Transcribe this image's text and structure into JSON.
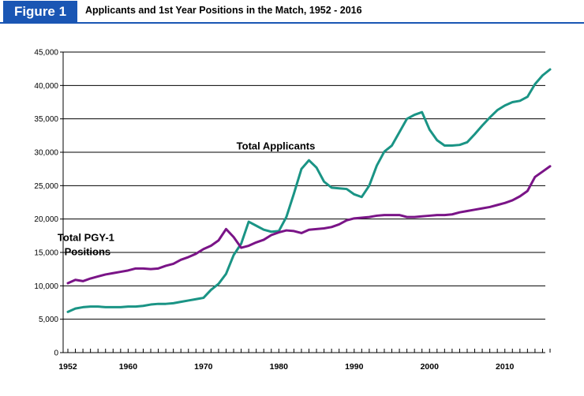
{
  "figure_label": "Figure 1",
  "figure_title": "Applicants and 1st Year Positions in the Match, 1952 - 2016",
  "chart_data": {
    "type": "line",
    "title": "Applicants and 1st Year Positions in the Match, 1952 - 2016",
    "xlabel": "",
    "ylabel": "",
    "xlim": [
      1952,
      2016
    ],
    "ylim": [
      0,
      45000
    ],
    "yticks": [
      0,
      5000,
      10000,
      15000,
      20000,
      25000,
      30000,
      35000,
      40000,
      45000
    ],
    "ytick_labels": [
      "0",
      "5,000",
      "10,000",
      "15,000",
      "20,000",
      "25,000",
      "30,000",
      "35,000",
      "40,000",
      "45,000"
    ],
    "xticks": [
      1952,
      1960,
      1970,
      1980,
      1990,
      2000,
      2010
    ],
    "xtick_labels": [
      "1952",
      "1960",
      "1970",
      "1980",
      "1990",
      "2000",
      "2010"
    ],
    "grid": "horizontal",
    "legend": "none",
    "x": [
      1952,
      1953,
      1954,
      1955,
      1956,
      1957,
      1958,
      1959,
      1960,
      1961,
      1962,
      1963,
      1964,
      1965,
      1966,
      1967,
      1968,
      1969,
      1970,
      1971,
      1972,
      1973,
      1974,
      1975,
      1976,
      1977,
      1978,
      1979,
      1980,
      1981,
      1982,
      1983,
      1984,
      1985,
      1986,
      1987,
      1988,
      1989,
      1990,
      1991,
      1992,
      1993,
      1994,
      1995,
      1996,
      1997,
      1998,
      1999,
      2000,
      2001,
      2002,
      2003,
      2004,
      2005,
      2006,
      2007,
      2008,
      2009,
      2010,
      2011,
      2012,
      2013,
      2014,
      2015,
      2016
    ],
    "series": [
      {
        "name": "Total Applicants",
        "color": "#1a9485",
        "values": [
          6100,
          6600,
          6800,
          6900,
          6900,
          6800,
          6800,
          6800,
          6900,
          6900,
          7000,
          7200,
          7300,
          7300,
          7400,
          7600,
          7800,
          8000,
          8200,
          9400,
          10300,
          11800,
          14600,
          16300,
          19600,
          19000,
          18400,
          18100,
          18200,
          20300,
          23800,
          27500,
          28800,
          27700,
          25600,
          24700,
          24600,
          24500,
          23700,
          23300,
          25000,
          28000,
          30100,
          31000,
          33000,
          35000,
          35600,
          36000,
          33400,
          31800,
          31000,
          31000,
          31100,
          31500,
          32700,
          34000,
          35200,
          36300,
          37000,
          37500,
          37700,
          38300,
          40200,
          41500,
          42400
        ],
        "label_x": 1979.6,
        "label_y": 30400
      },
      {
        "name": "Total PGY-1 Positions",
        "color": "#7a1487",
        "values": [
          10400,
          10900,
          10700,
          11100,
          11400,
          11700,
          11900,
          12100,
          12300,
          12600,
          12600,
          12500,
          12600,
          13000,
          13300,
          13900,
          14300,
          14800,
          15500,
          16000,
          16800,
          18500,
          17300,
          15700,
          16000,
          16500,
          16900,
          17600,
          18000,
          18300,
          18200,
          17900,
          18400,
          18500,
          18600,
          18800,
          19200,
          19800,
          20100,
          20200,
          20300,
          20500,
          20600,
          20600,
          20600,
          20300,
          20300,
          20400,
          20500,
          20600,
          20600,
          20700,
          21000,
          21200,
          21400,
          21600,
          21800,
          22100,
          22400,
          22800,
          23400,
          24200,
          26300,
          27100,
          27900
        ],
        "label_x": 1954.4,
        "label_y": 16700
      }
    ]
  }
}
